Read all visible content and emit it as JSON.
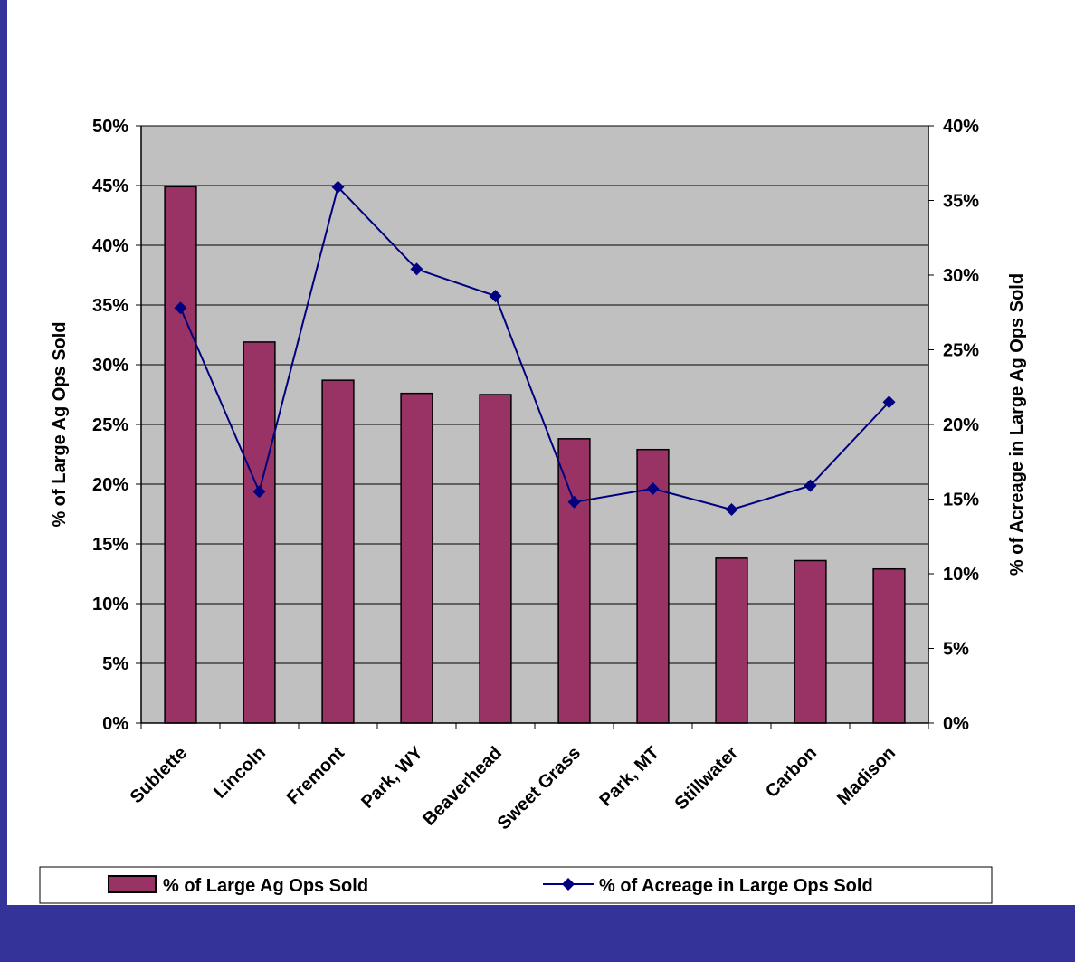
{
  "chart_data": {
    "type": "bar",
    "categories": [
      "Sublette",
      "Lincoln",
      "Fremont",
      "Park, WY",
      "Beaverhead",
      "Sweet Grass",
      "Park, MT",
      "Stillwater",
      "Carbon",
      "Madison"
    ],
    "series": [
      {
        "name": "% of Large Ag Ops Sold",
        "type": "bar",
        "axis": "left",
        "values": [
          0.449,
          0.319,
          0.287,
          0.276,
          0.275,
          0.238,
          0.229,
          0.138,
          0.136,
          0.129
        ]
      },
      {
        "name": "% of Acreage in Large Ops Sold",
        "type": "line",
        "marker": "diamond",
        "axis": "right",
        "values": [
          0.278,
          0.155,
          0.359,
          0.304,
          0.286,
          0.148,
          0.157,
          0.143,
          0.159,
          0.215
        ]
      }
    ],
    "ylabel": "% of Large Ag Ops Sold",
    "ylabel_right": "% of Acreage in Large Ag Ops Sold",
    "ylim": [
      0,
      0.5
    ],
    "ylim_right": [
      0,
      0.4
    ],
    "yticks": [
      "0%",
      "5%",
      "10%",
      "15%",
      "20%",
      "25%",
      "30%",
      "35%",
      "40%",
      "45%",
      "50%"
    ],
    "yticks_right": [
      "0%",
      "5%",
      "10%",
      "15%",
      "20%",
      "25%",
      "30%",
      "35%",
      "40%"
    ],
    "grid": true,
    "legend_position": "bottom",
    "colors": {
      "bar_fill": "#993366",
      "line": "#000080",
      "plot_background": "#C0C0C0",
      "border": "#333399"
    }
  }
}
